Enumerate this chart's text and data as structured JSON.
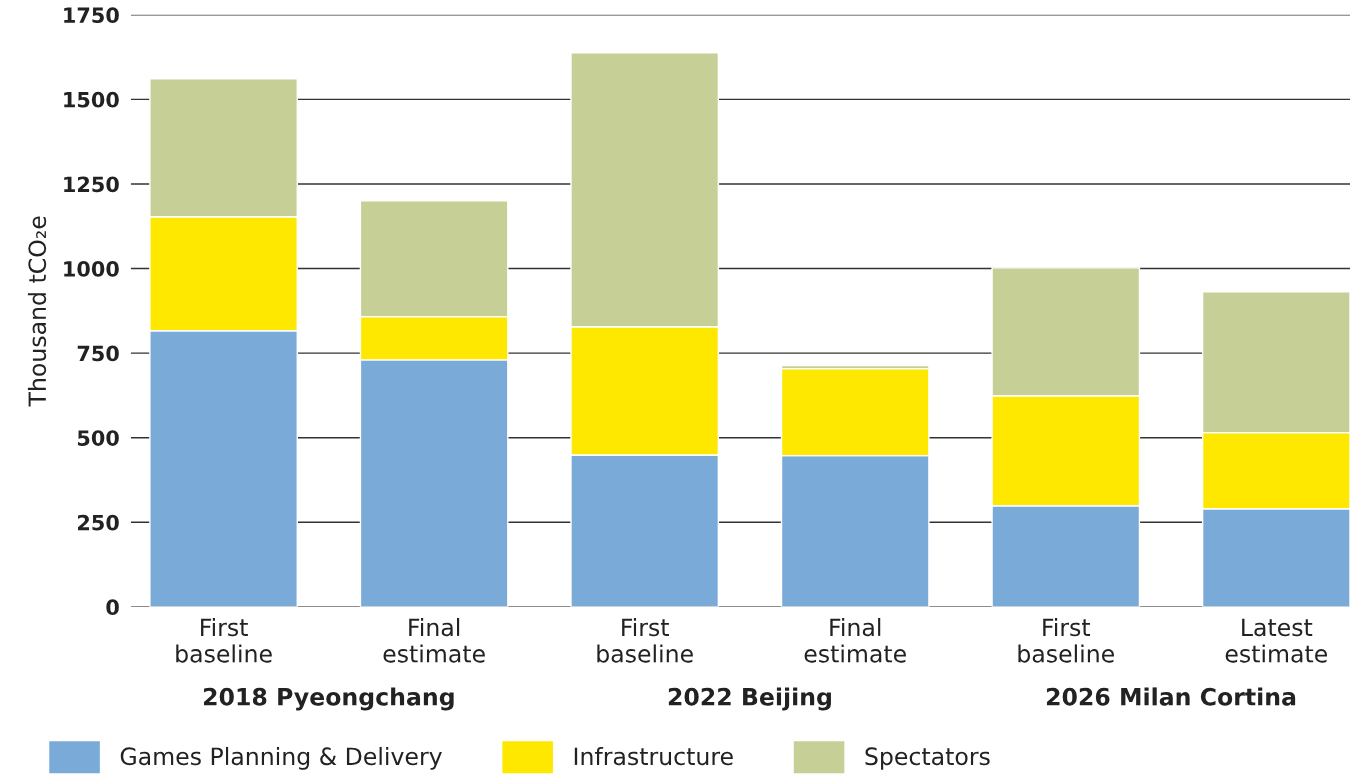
{
  "chart_data": {
    "type": "bar",
    "stacked": true,
    "ylabel": "Thousand tCO₂e",
    "categories": [
      "First\nbaseline",
      "Final\nestimate",
      "First\nbaseline",
      "Final\nestimate",
      "First\nbaseline",
      "Latest\nestimate"
    ],
    "series": [
      {
        "name": "Games Planning & Delivery",
        "color": "#7aaad8",
        "values": [
          816,
          730,
          449,
          447,
          299,
          290
        ]
      },
      {
        "name": "Infrastructure",
        "color": "#ffe800",
        "values": [
          337,
          128,
          379,
          257,
          325,
          225
        ]
      },
      {
        "name": "Spectators",
        "color": "#c5cf96",
        "values": [
          408,
          342,
          810,
          9,
          378,
          416
        ]
      }
    ],
    "annotations": [
      "2018 Pyeongchang",
      "2022 Beijing",
      "2026 Milan Cortina"
    ],
    "ylim": [
      0,
      1750
    ],
    "yticks": [
      0,
      250,
      500,
      750,
      1000,
      1250,
      1500,
      1750
    ],
    "grid": "y",
    "legend": "bottom"
  }
}
